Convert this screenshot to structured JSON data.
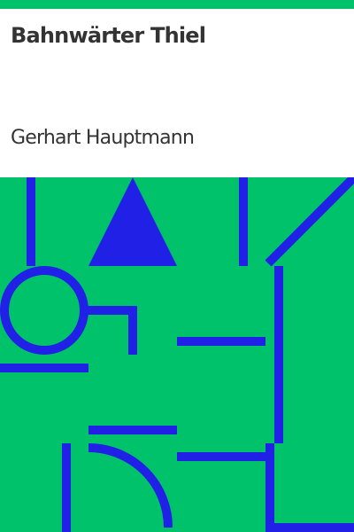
{
  "book": {
    "title": "Bahnwärter Thiel",
    "author": "Gerhart Hauptmann"
  },
  "colors": {
    "background": "#00c26a",
    "shapes": "#2020e6",
    "text": "#333333",
    "header_background": "#ffffff"
  }
}
